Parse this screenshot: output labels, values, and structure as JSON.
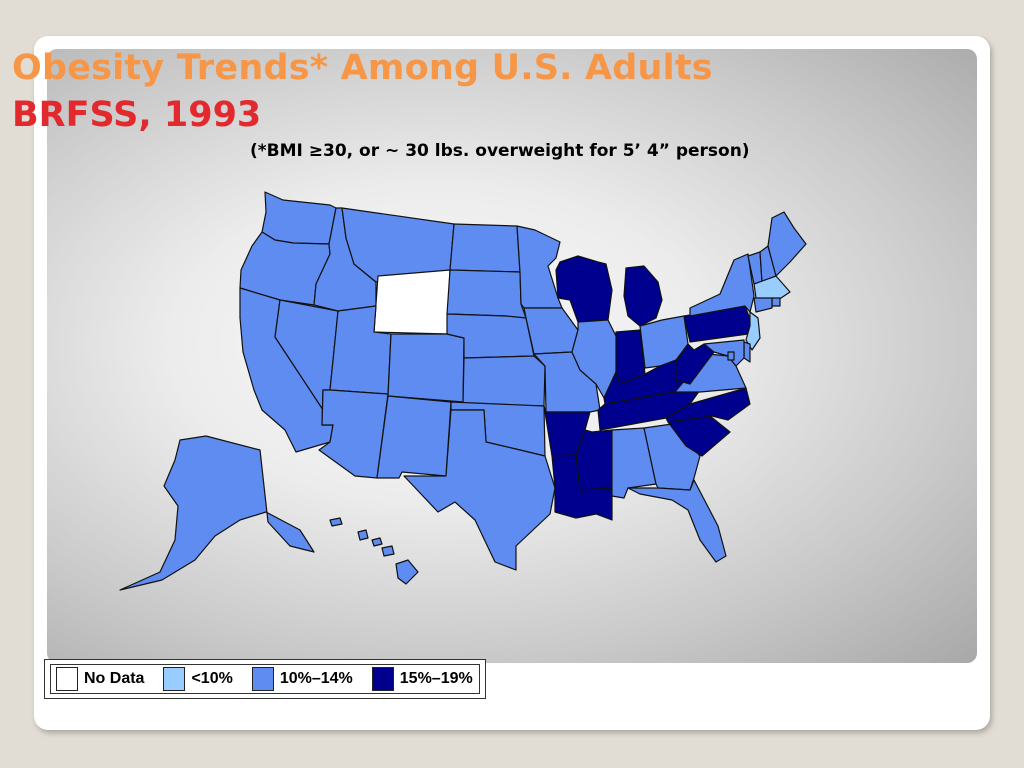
{
  "title_line1": "Obesity Trends* Among U.S. Adults",
  "title_line2": "BRFSS, 1993",
  "subtitle": "(*BMI ≥30, or ~ 30 lbs. overweight for 5’ 4” person)",
  "legend": [
    {
      "label": "No Data",
      "color": "#ffffff",
      "key": "nodata"
    },
    {
      "label": "<10%",
      "color": "#99ccff",
      "key": "lt10"
    },
    {
      "label": "10%–14%",
      "color": "#5e8cf0",
      "key": "10to14"
    },
    {
      "label": "15%–19%",
      "color": "#00008f",
      "key": "15to19"
    }
  ],
  "states": {
    "WA": "10to14",
    "OR": "10to14",
    "CA": "10to14",
    "NV": "10to14",
    "ID": "10to14",
    "MT": "10to14",
    "WY": "nodata",
    "UT": "10to14",
    "CO": "10to14",
    "AZ": "10to14",
    "NM": "10to14",
    "ND": "10to14",
    "SD": "10to14",
    "NE": "10to14",
    "KS": "10to14",
    "OK": "10to14",
    "TX": "10to14",
    "MN": "10to14",
    "IA": "10to14",
    "MO": "10to14",
    "AR": "15to19",
    "LA": "15to19",
    "WI": "15to19",
    "IL": "10to14",
    "MI": "15to19",
    "IN": "15to19",
    "OH": "10to14",
    "KY": "15to19",
    "TN": "15to19",
    "MS": "15to19",
    "AL": "10to14",
    "GA": "10to14",
    "FL": "10to14",
    "SC": "15to19",
    "NC": "15to19",
    "VA": "10to14",
    "WV": "15to19",
    "PA": "15to19",
    "NY": "10to14",
    "VT": "10to14",
    "NH": "10to14",
    "ME": "10to14",
    "MA": "lt10",
    "RI": "10to14",
    "CT": "10to14",
    "NJ": "lt10",
    "DE": "10to14",
    "MD": "10to14",
    "DC": "10to14",
    "AK": "10to14",
    "HI": "10to14"
  }
}
